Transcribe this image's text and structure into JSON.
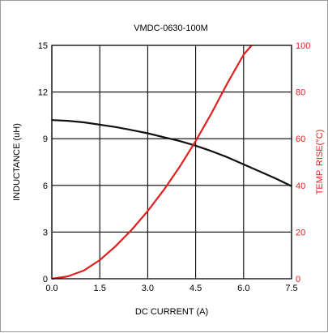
{
  "chart_data": {
    "type": "line",
    "title": "VMDC-0630-100M",
    "xlabel": "DC CURRENT (A)",
    "ylabel_left": "INDUCTANCE (uH)",
    "ylabel_right": "TEMP. RISE(°C)",
    "xlim": [
      0,
      7.5
    ],
    "ylim_left": [
      0,
      15
    ],
    "ylim_right": [
      0,
      100
    ],
    "x_ticks": [
      "0.0",
      "1.5",
      "3.0",
      "4.5",
      "6.0",
      "7.5"
    ],
    "y_left_ticks": [
      "0",
      "3",
      "6",
      "9",
      "12",
      "15"
    ],
    "y_right_ticks": [
      "0",
      "20",
      "40",
      "60",
      "80",
      "100"
    ],
    "grid": true,
    "series": [
      {
        "axis": "left",
        "color": "#111111",
        "x": [
          0,
          0.5,
          1.0,
          1.5,
          2.0,
          2.5,
          3.0,
          3.5,
          4.0,
          4.5,
          5.0,
          5.5,
          6.0,
          6.5,
          7.0,
          7.5
        ],
        "y": [
          10.2,
          10.15,
          10.05,
          9.9,
          9.75,
          9.55,
          9.35,
          9.1,
          8.85,
          8.55,
          8.2,
          7.8,
          7.35,
          6.9,
          6.45,
          5.95
        ]
      },
      {
        "axis": "right",
        "color": "#e02020",
        "x": [
          0,
          0.5,
          1.0,
          1.5,
          2.0,
          2.5,
          3.0,
          3.5,
          4.0,
          4.5,
          5.0,
          5.5,
          6.0,
          6.25
        ],
        "y": [
          0,
          1,
          3.5,
          8,
          14,
          21,
          29,
          38,
          48,
          59,
          71,
          84,
          96,
          100
        ]
      }
    ]
  }
}
